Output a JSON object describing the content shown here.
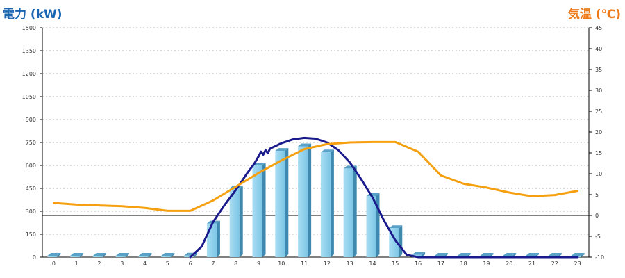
{
  "chart_data": {
    "type": "bar",
    "left_axis_title": "電力 (kW)",
    "right_axis_title": "気温 (℃)",
    "categories": [
      "0",
      "1",
      "2",
      "3",
      "4",
      "5",
      "6",
      "7",
      "8",
      "9",
      "10",
      "11",
      "12",
      "13",
      "14",
      "15",
      "16",
      "17",
      "18",
      "19",
      "20",
      "21",
      "22",
      "23"
    ],
    "y_left": {
      "min": 0,
      "max": 1500,
      "ticks": [
        "0",
        "150",
        "300",
        "450",
        "600",
        "750",
        "900",
        "1050",
        "1200",
        "1350",
        "1500"
      ]
    },
    "y_right": {
      "min": -10,
      "max": 45,
      "ticks": [
        "-10",
        "-5",
        "0",
        "5",
        "10",
        "15",
        "20",
        "25",
        "30",
        "35",
        "40",
        "45"
      ]
    },
    "series": [
      {
        "kind": "bar",
        "axis": "left",
        "values": [
          0,
          0,
          0,
          0,
          0,
          0,
          10,
          220,
          450,
          600,
          695,
          725,
          685,
          580,
          400,
          190,
          15,
          0,
          0,
          0,
          0,
          0,
          0,
          0
        ],
        "color": "#87ceeb"
      },
      {
        "kind": "line",
        "axis": "left",
        "color": "#1a1a8c",
        "points": [
          [
            6,
            0
          ],
          [
            6.5,
            70
          ],
          [
            7,
            230
          ],
          [
            7.5,
            340
          ],
          [
            8,
            440
          ],
          [
            8.5,
            550
          ],
          [
            8.8,
            610
          ],
          [
            9,
            660
          ],
          [
            9.1,
            690
          ],
          [
            9.2,
            670
          ],
          [
            9.3,
            700
          ],
          [
            9.4,
            680
          ],
          [
            9.5,
            710
          ],
          [
            10,
            745
          ],
          [
            10.5,
            770
          ],
          [
            11,
            780
          ],
          [
            11.5,
            775
          ],
          [
            12,
            750
          ],
          [
            12.5,
            700
          ],
          [
            13,
            620
          ],
          [
            13.5,
            510
          ],
          [
            14,
            390
          ],
          [
            14.5,
            240
          ],
          [
            15,
            110
          ],
          [
            15.5,
            15
          ],
          [
            16,
            0
          ],
          [
            23,
            0
          ]
        ]
      },
      {
        "kind": "line",
        "axis": "right",
        "color": "#f5a010",
        "values": [
          3,
          2.6,
          2.4,
          2.2,
          1.8,
          1.1,
          1.1,
          3.6,
          6.9,
          10.2,
          13.2,
          15.9,
          17.1,
          17.5,
          17.6,
          17.6,
          15.3,
          9.6,
          7.6,
          6.7,
          5.5,
          4.6,
          4.9,
          5.9
        ]
      }
    ],
    "reference_line": {
      "axis": "right",
      "value": 0,
      "color": "#000000"
    },
    "grid": true
  }
}
